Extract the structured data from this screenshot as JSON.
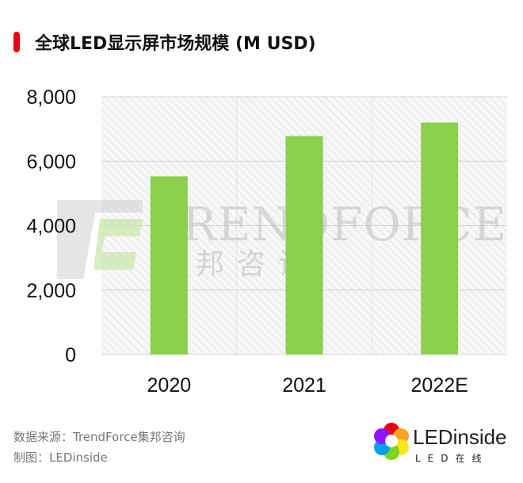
{
  "chart_data": {
    "type": "bar",
    "title": "全球LED显示屏市场规模 (M USD)",
    "categories": [
      "2020",
      "2021",
      "2022E"
    ],
    "values": [
      5530,
      6780,
      7200
    ],
    "ylim": [
      0,
      8000
    ],
    "yticks": [
      "0",
      "2,000",
      "4,000",
      "6,000",
      "8,000"
    ],
    "ytick_values": [
      0,
      2000,
      4000,
      6000,
      8000
    ],
    "grid": true,
    "bar_color": "#8ccf4d",
    "accent_color": "#e60012"
  },
  "watermark": {
    "brand": "TRENDFORCE",
    "brand_cn": "集邦咨询"
  },
  "footer": {
    "source": "数据来源：TrendForce集邦咨询",
    "maker": "制图：LEDinside"
  },
  "logo": {
    "name": "LEDinside",
    "sub": "LED在线"
  }
}
